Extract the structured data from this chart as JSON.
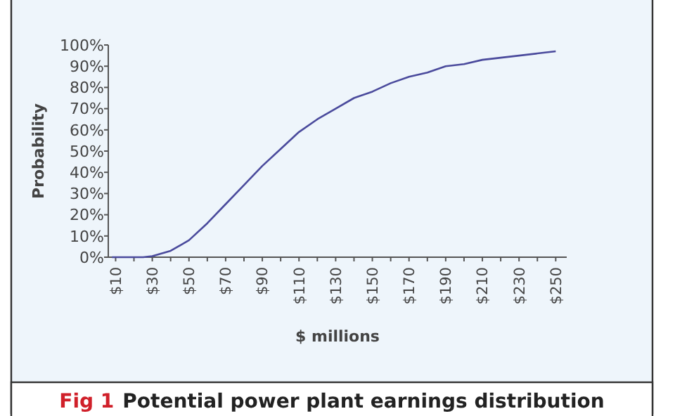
{
  "chart_data": {
    "type": "line",
    "title": "Fig 1 Potential power plant earnings distribution",
    "xlabel": "$ millions",
    "ylabel": "Probability",
    "x": [
      8,
      20,
      25,
      30,
      40,
      50,
      60,
      70,
      80,
      90,
      100,
      110,
      120,
      130,
      140,
      150,
      160,
      170,
      180,
      190,
      200,
      210,
      220,
      230,
      240,
      250
    ],
    "series": [
      {
        "color": "#4a4a9c",
        "values": [
          0,
          0,
          0,
          0.5,
          3,
          8,
          16,
          25,
          34,
          43,
          51,
          59,
          65,
          70,
          75,
          78,
          82,
          85,
          87,
          90,
          91,
          93,
          94,
          95,
          96,
          97
        ]
      }
    ],
    "xlim": [
      6,
      256
    ],
    "ylim": [
      0,
      100
    ],
    "xticks": [
      {
        "value": 10,
        "label": "$10"
      },
      {
        "value": 20,
        "label": null
      },
      {
        "value": 30,
        "label": "$30"
      },
      {
        "value": 40,
        "label": null
      },
      {
        "value": 50,
        "label": "$50"
      },
      {
        "value": 60,
        "label": null
      },
      {
        "value": 70,
        "label": "$70"
      },
      {
        "value": 80,
        "label": null
      },
      {
        "value": 90,
        "label": "$90"
      },
      {
        "value": 100,
        "label": null
      },
      {
        "value": 110,
        "label": "$110"
      },
      {
        "value": 120,
        "label": null
      },
      {
        "value": 130,
        "label": "$130"
      },
      {
        "value": 140,
        "label": null
      },
      {
        "value": 150,
        "label": "$150"
      },
      {
        "value": 160,
        "label": null
      },
      {
        "value": 170,
        "label": "$170"
      },
      {
        "value": 180,
        "label": null
      },
      {
        "value": 190,
        "label": "$190"
      },
      {
        "value": 200,
        "label": null
      },
      {
        "value": 210,
        "label": "$210"
      },
      {
        "value": 220,
        "label": null
      },
      {
        "value": 230,
        "label": "$230"
      },
      {
        "value": 240,
        "label": null
      },
      {
        "value": 250,
        "label": "$250"
      }
    ],
    "yticks": [
      {
        "value": 0,
        "label": "0%"
      },
      {
        "value": 10,
        "label": "10%"
      },
      {
        "value": 20,
        "label": "20%"
      },
      {
        "value": 30,
        "label": "30%"
      },
      {
        "value": 40,
        "label": "40%"
      },
      {
        "value": 50,
        "label": "50%"
      },
      {
        "value": 60,
        "label": "60%"
      },
      {
        "value": 70,
        "label": "70%"
      },
      {
        "value": 80,
        "label": "80%"
      },
      {
        "value": 90,
        "label": "90%"
      },
      {
        "value": 100,
        "label": "100%"
      }
    ],
    "grid": false
  }
}
